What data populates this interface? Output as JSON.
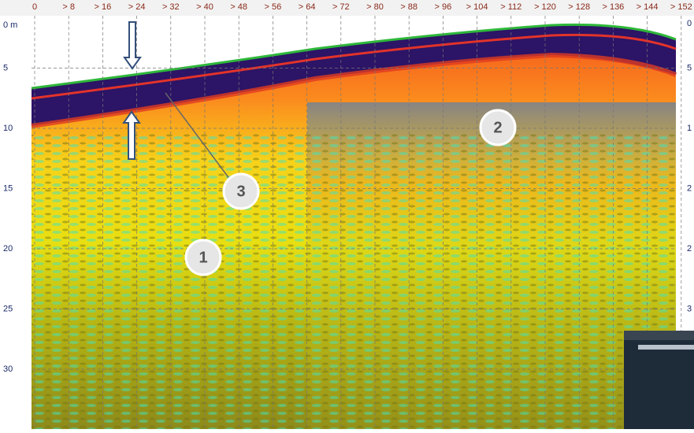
{
  "top_ruler": {
    "labels": [
      "0",
      "> 8",
      "> 16",
      "> 24",
      "> 32",
      "> 40",
      "> 48",
      "> 56",
      "> 64",
      "> 72",
      "> 80",
      "> 88",
      "> 96",
      "> 104",
      "> 112",
      "> 120",
      "> 128",
      "> 136",
      "> 144",
      "> 152"
    ]
  },
  "left_ruler": {
    "labels": [
      "0 m",
      "5",
      "10",
      "15",
      "20",
      "25",
      "30"
    ]
  },
  "right_ruler": {
    "labels": [
      "0",
      "5",
      "1",
      "2",
      "2",
      "3"
    ]
  },
  "callouts": [
    {
      "label": "1"
    },
    {
      "label": "2"
    },
    {
      "label": "3"
    }
  ]
}
